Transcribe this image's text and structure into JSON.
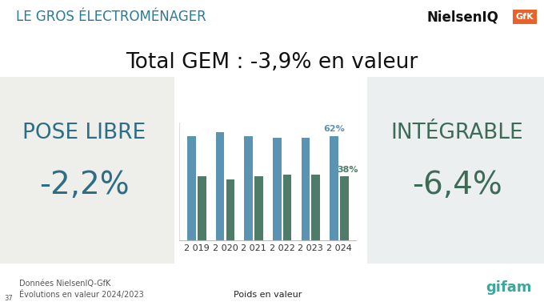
{
  "header": "LE GROS ÉLECTROMÉNAGER",
  "logos": [
    "NielsenIQ",
    "GfK",
    "gifam"
  ],
  "footer": [
    "Données NielsenIQ-GfK",
    "Évolutions en valeur 2024/2023"
  ],
  "page": "37",
  "chart_data": {
    "type": "bar",
    "title": "Total GEM : -3,9% en valeur",
    "x_label": "Poids en valeur",
    "categories": [
      "2 019",
      "2 020",
      "2 021",
      "2 022",
      "2 023",
      "2 024"
    ],
    "series": [
      {
        "name": "POSE LIBRE",
        "evolution": "-2,2%",
        "color": "#5b94b3",
        "values": [
          62,
          64,
          62,
          61,
          61,
          62
        ],
        "value_labels": [
          null,
          null,
          null,
          null,
          null,
          "62%"
        ]
      },
      {
        "name": "INTÉGRABLE",
        "evolution": "-6,4%",
        "color": "#4e7c69",
        "values": [
          38,
          36,
          38,
          39,
          39,
          38
        ],
        "value_labels": [
          null,
          null,
          null,
          null,
          null,
          "38%"
        ]
      }
    ],
    "ylim": [
      0,
      70
    ],
    "yticks": [],
    "tick_labels": "x",
    "data_labels": true,
    "grid": false
  }
}
